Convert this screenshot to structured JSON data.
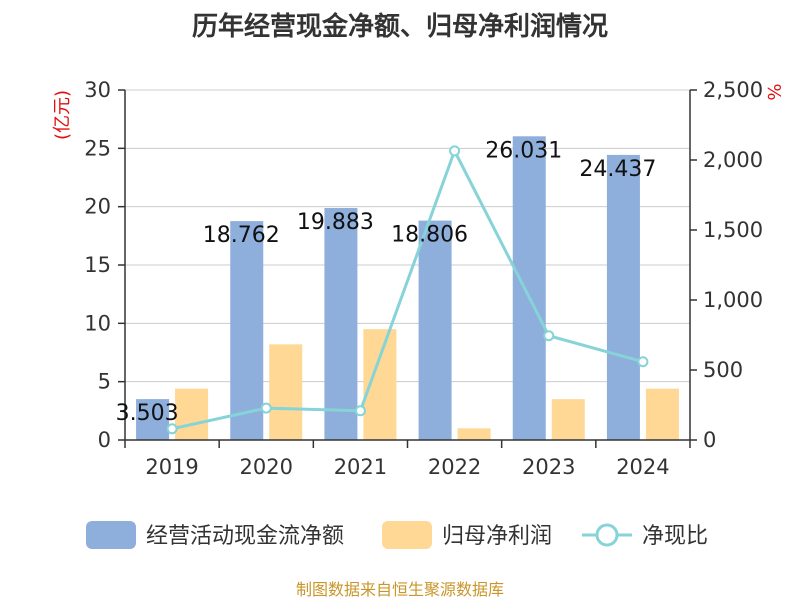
{
  "chart_data": {
    "type": "bar",
    "title": "历年经营现金净额、归母净利润情况",
    "categories": [
      "2019",
      "2020",
      "2021",
      "2022",
      "2023",
      "2024"
    ],
    "series": [
      {
        "name": "经营活动现金流净额",
        "kind": "bar",
        "axis": "left",
        "values": [
          3.503,
          18.762,
          19.883,
          18.806,
          26.031,
          24.437
        ],
        "labels": [
          "3.503",
          "18.762",
          "19.883",
          "18.806",
          "26.031",
          "24.437"
        ]
      },
      {
        "name": "归母净利润",
        "kind": "bar",
        "axis": "left",
        "values": [
          4.4,
          8.2,
          9.5,
          1.0,
          3.5,
          4.4
        ]
      },
      {
        "name": "净现比",
        "kind": "line",
        "axis": "right",
        "values": [
          80,
          228,
          209,
          2065,
          745,
          559
        ]
      }
    ],
    "left_axis": {
      "label": "(亿元)",
      "ylim": [
        0,
        30
      ],
      "ticks": [
        "0",
        "5",
        "10",
        "15",
        "20",
        "25",
        "30"
      ],
      "tick_values": [
        0,
        5,
        10,
        15,
        20,
        25,
        30
      ]
    },
    "right_axis": {
      "label": "%",
      "ylim": [
        0,
        2500
      ],
      "ticks": [
        "0",
        "500",
        "1,000",
        "1,500",
        "2,000",
        "2,500"
      ],
      "tick_values": [
        0,
        500,
        1000,
        1500,
        2000,
        2500
      ]
    },
    "grid": true,
    "legend": "bottom-center",
    "colors": {
      "cash": "#8eaedb",
      "profit": "#fed894",
      "ratio": "#86d3d8"
    }
  },
  "source": "制图数据来自恒生聚源数据库"
}
